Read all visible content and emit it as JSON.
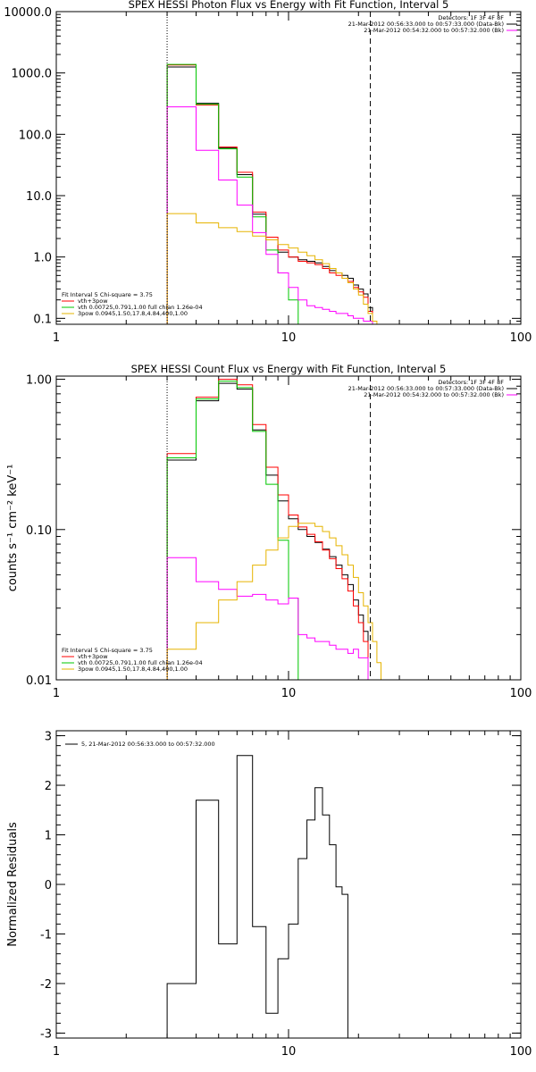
{
  "chart_data": [
    {
      "type": "line",
      "title": "SPEX HESSI Photon Flux vs Energy with Fit Function, Interval 5",
      "ylabel": "",
      "xscale": "log",
      "yscale": "log",
      "xlim": [
        1,
        100
      ],
      "ylim": [
        0.08,
        10000
      ],
      "xticks": [
        {
          "v": 1,
          "t": "1"
        },
        {
          "v": 10,
          "t": "10"
        },
        {
          "v": 100,
          "t": "100"
        }
      ],
      "yticks": [
        {
          "v": 0.1,
          "t": "0.1"
        },
        {
          "v": 1,
          "t": "1.0"
        },
        {
          "v": 10,
          "t": "10.0"
        },
        {
          "v": 100,
          "t": "100.0"
        },
        {
          "v": 1000,
          "t": "1000.0"
        },
        {
          "v": 10000,
          "t": "10000.0"
        }
      ],
      "vlines": [
        {
          "x": 3,
          "style": "dotted"
        },
        {
          "x": 22.5,
          "style": "dashed"
        }
      ],
      "info": [
        "Detectors: 1F 3F 4F 8F",
        "21-Mar-2012 00:56:33.000 to 00:57:33.000 (Data-Bk)",
        "21-Mar-2012 00:54:32.000 to 00:57:32.000 (Bk)"
      ],
      "info_colors": [
        "",
        "#000000",
        "#ff00ff"
      ],
      "fit": [
        "Fit Interval 5   Chi-square = 3.75",
        "vth+3pow",
        "vth 0.00725,0.791,1.00   full chian 1.26e-04",
        "3pow 0.0945,1.50,17.8,4.84,400,1.00"
      ],
      "fit_colors": [
        "",
        "#ff0000",
        "#00c800",
        "#e6b400"
      ],
      "edges": [
        3,
        4,
        5,
        6,
        7,
        8,
        9,
        10,
        11,
        12,
        13,
        14,
        15,
        16,
        17,
        18,
        19,
        20,
        21,
        22,
        23,
        24
      ],
      "series": [
        {
          "color": "#000000",
          "values": [
            1250,
            320,
            60,
            22,
            5,
            1.9,
            1.2,
            1.0,
            0.9,
            0.85,
            0.8,
            0.7,
            0.6,
            0.55,
            0.5,
            0.45,
            0.35,
            0.3,
            0.25,
            0.15
          ]
        },
        {
          "color": "#ff0000",
          "values": [
            1350,
            300,
            62,
            24,
            5.4,
            2.1,
            1.3,
            1.0,
            0.85,
            0.8,
            0.75,
            0.65,
            0.55,
            0.5,
            0.45,
            0.4,
            0.32,
            0.27,
            0.22,
            0.13
          ]
        },
        {
          "color": "#00c800",
          "values": [
            1380,
            310,
            58,
            20,
            4.5,
            1.3,
            0.55,
            0.2,
            0.07
          ]
        },
        {
          "color": "#ff00ff",
          "values": [
            280,
            55,
            18,
            7,
            2.5,
            1.1,
            0.55,
            0.32,
            0.2,
            0.16,
            0.15,
            0.14,
            0.13,
            0.12,
            0.12,
            0.11,
            0.1,
            0.1,
            0.09,
            0.09
          ]
        },
        {
          "color": "#e6b400",
          "values": [
            5.1,
            3.6,
            3.0,
            2.6,
            2.2,
            1.9,
            1.6,
            1.4,
            1.2,
            1.05,
            0.9,
            0.78,
            0.65,
            0.55,
            0.45,
            0.38,
            0.3,
            0.24,
            0.17,
            0.12,
            0.09
          ]
        }
      ]
    },
    {
      "type": "line",
      "title": "SPEX HESSI Count Flux vs Energy with Fit Function, Interval 5",
      "ylabel": "counts s⁻¹ cm⁻² keV⁻¹",
      "xscale": "log",
      "yscale": "log",
      "xlim": [
        1,
        100
      ],
      "ylim": [
        0.01,
        1.05
      ],
      "xticks": [
        {
          "v": 1,
          "t": "1"
        },
        {
          "v": 10,
          "t": "10"
        },
        {
          "v": 100,
          "t": "100"
        }
      ],
      "yticks": [
        {
          "v": 0.01,
          "t": "0.01"
        },
        {
          "v": 0.1,
          "t": "0.10"
        },
        {
          "v": 1,
          "t": "1.00"
        }
      ],
      "vlines": [
        {
          "x": 3,
          "style": "dotted"
        },
        {
          "x": 22.5,
          "style": "dashed"
        }
      ],
      "info": [
        "Detectors: 1F 3F 4F 8F",
        "21-Mar-2012 00:56:33.000 to 00:57:33.000 (Data-Bk)",
        "21-Mar-2012 00:54:32.000 to 00:57:32.000 (Bk)"
      ],
      "info_colors": [
        "",
        "#000000",
        "#ff00ff"
      ],
      "fit": [
        "Fit Interval 5   Chi-square = 3.75",
        "vth+3pow",
        "vth 0.00725,0.791,1.00   full chian 1.26e-04",
        "3pow 0.0945,1.50,17.8,4.84,400,1.00"
      ],
      "fit_colors": [
        "",
        "#ff0000",
        "#00c800",
        "#e6b400"
      ],
      "edges": [
        3,
        4,
        5,
        6,
        7,
        8,
        9,
        10,
        11,
        12,
        13,
        14,
        15,
        16,
        17,
        18,
        19,
        20,
        21,
        22,
        23,
        24,
        25
      ],
      "series": [
        {
          "color": "#000000",
          "values": [
            0.29,
            0.72,
            0.94,
            0.86,
            0.46,
            0.23,
            0.155,
            0.118,
            0.1,
            0.09,
            0.082,
            0.074,
            0.066,
            0.058,
            0.05,
            0.043,
            0.034,
            0.027,
            0.021
          ]
        },
        {
          "color": "#ff0000",
          "values": [
            0.32,
            0.76,
            1.0,
            0.92,
            0.5,
            0.26,
            0.17,
            0.125,
            0.104,
            0.093,
            0.083,
            0.073,
            0.064,
            0.055,
            0.047,
            0.039,
            0.031,
            0.024,
            0.018
          ]
        },
        {
          "color": "#00c800",
          "values": [
            0.3,
            0.74,
            0.97,
            0.88,
            0.45,
            0.2,
            0.085,
            0.035,
            0.01
          ]
        },
        {
          "color": "#ff00ff",
          "values": [
            0.065,
            0.045,
            0.04,
            0.036,
            0.037,
            0.034,
            0.032,
            0.035,
            0.02,
            0.019,
            0.018,
            0.018,
            0.017,
            0.016,
            0.016,
            0.015,
            0.016,
            0.014,
            0.014,
            0.01
          ]
        },
        {
          "color": "#e6b400",
          "values": [
            0.016,
            0.024,
            0.034,
            0.045,
            0.058,
            0.073,
            0.088,
            0.105,
            0.11,
            0.11,
            0.105,
            0.097,
            0.088,
            0.078,
            0.068,
            0.058,
            0.048,
            0.038,
            0.031,
            0.024,
            0.018,
            0.013
          ]
        }
      ]
    },
    {
      "type": "line",
      "title": "",
      "ylabel": "Normalized Residuals",
      "xscale": "log",
      "yscale": "linear",
      "xlim": [
        1,
        100
      ],
      "ylim": [
        -3.1,
        3.1
      ],
      "xticks": [
        {
          "v": 1,
          "t": "1"
        },
        {
          "v": 10,
          "t": "10"
        },
        {
          "v": 100,
          "t": "100"
        }
      ],
      "yticks": [
        {
          "v": -3,
          "t": "-3"
        },
        {
          "v": -2,
          "t": "-2"
        },
        {
          "v": -1,
          "t": "-1"
        },
        {
          "v": 0,
          "t": "0"
        },
        {
          "v": 1,
          "t": "1"
        },
        {
          "v": 2,
          "t": "2"
        },
        {
          "v": 3,
          "t": "3"
        }
      ],
      "legend": "5, 21-Mar-2012 00:56:33.000 to 00:57:32.000",
      "edges": [
        3,
        4,
        5,
        6,
        7,
        8,
        9,
        10,
        11,
        12,
        13,
        14,
        15,
        16,
        17,
        18,
        19,
        20,
        21,
        22,
        23
      ],
      "series": [
        {
          "color": "#000000",
          "values": [
            -2.0,
            1.7,
            -1.2,
            2.6,
            -0.85,
            -2.6,
            -1.5,
            -0.8,
            0.52,
            1.3,
            1.95,
            1.4,
            0.8,
            -0.05,
            -0.2
          ]
        }
      ]
    }
  ]
}
